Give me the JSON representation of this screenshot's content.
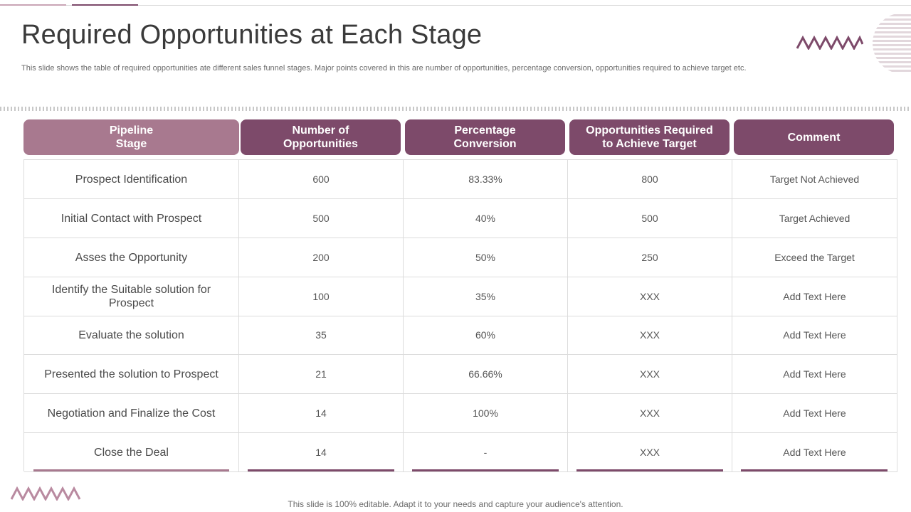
{
  "slide": {
    "title": "Required Opportunities at Each Stage",
    "subtitle": "This slide shows the table of required opportunities ate different sales funnel stages. Major points covered in this are number of opportunities, percentage conversion, opportunities required to achieve target etc.",
    "footer": "This slide is 100% editable. Adapt it to your needs and capture your audience's attention."
  },
  "colors": {
    "accent_dark": "#7d4a6a",
    "accent_light": "#a8798f"
  },
  "table": {
    "headers": [
      "Pipeline\nStage",
      "Number of\nOpportunities",
      "Percentage\nConversion",
      "Opportunities Required\nto Achieve Target",
      "Comment"
    ],
    "rows": [
      [
        "Prospect Identification",
        "600",
        "83.33%",
        "800",
        "Target Not Achieved"
      ],
      [
        "Initial  Contact with Prospect",
        "500",
        "40%",
        "500",
        "Target Achieved"
      ],
      [
        "Asses the Opportunity",
        "200",
        "50%",
        "250",
        "Exceed the Target"
      ],
      [
        "Identify  the Suitable solution for Prospect",
        "100",
        "35%",
        "XXX",
        "Add Text Here"
      ],
      [
        "Evaluate the solution",
        "35",
        "60%",
        "XXX",
        "Add Text Here"
      ],
      [
        "Presented the solution to Prospect",
        "21",
        "66.66%",
        "XXX",
        "Add Text Here"
      ],
      [
        "Negotiation and Finalize the Cost",
        "14",
        "100%",
        "XXX",
        "Add Text Here"
      ],
      [
        "Close the Deal",
        "14",
        "-",
        "XXX",
        "Add Text Here"
      ]
    ]
  },
  "icons": {
    "top_right": [
      "zigzag-decoration-icon",
      "striped-circle-decoration-icon"
    ],
    "bottom_left": [
      "zigzag-decoration-icon"
    ]
  }
}
